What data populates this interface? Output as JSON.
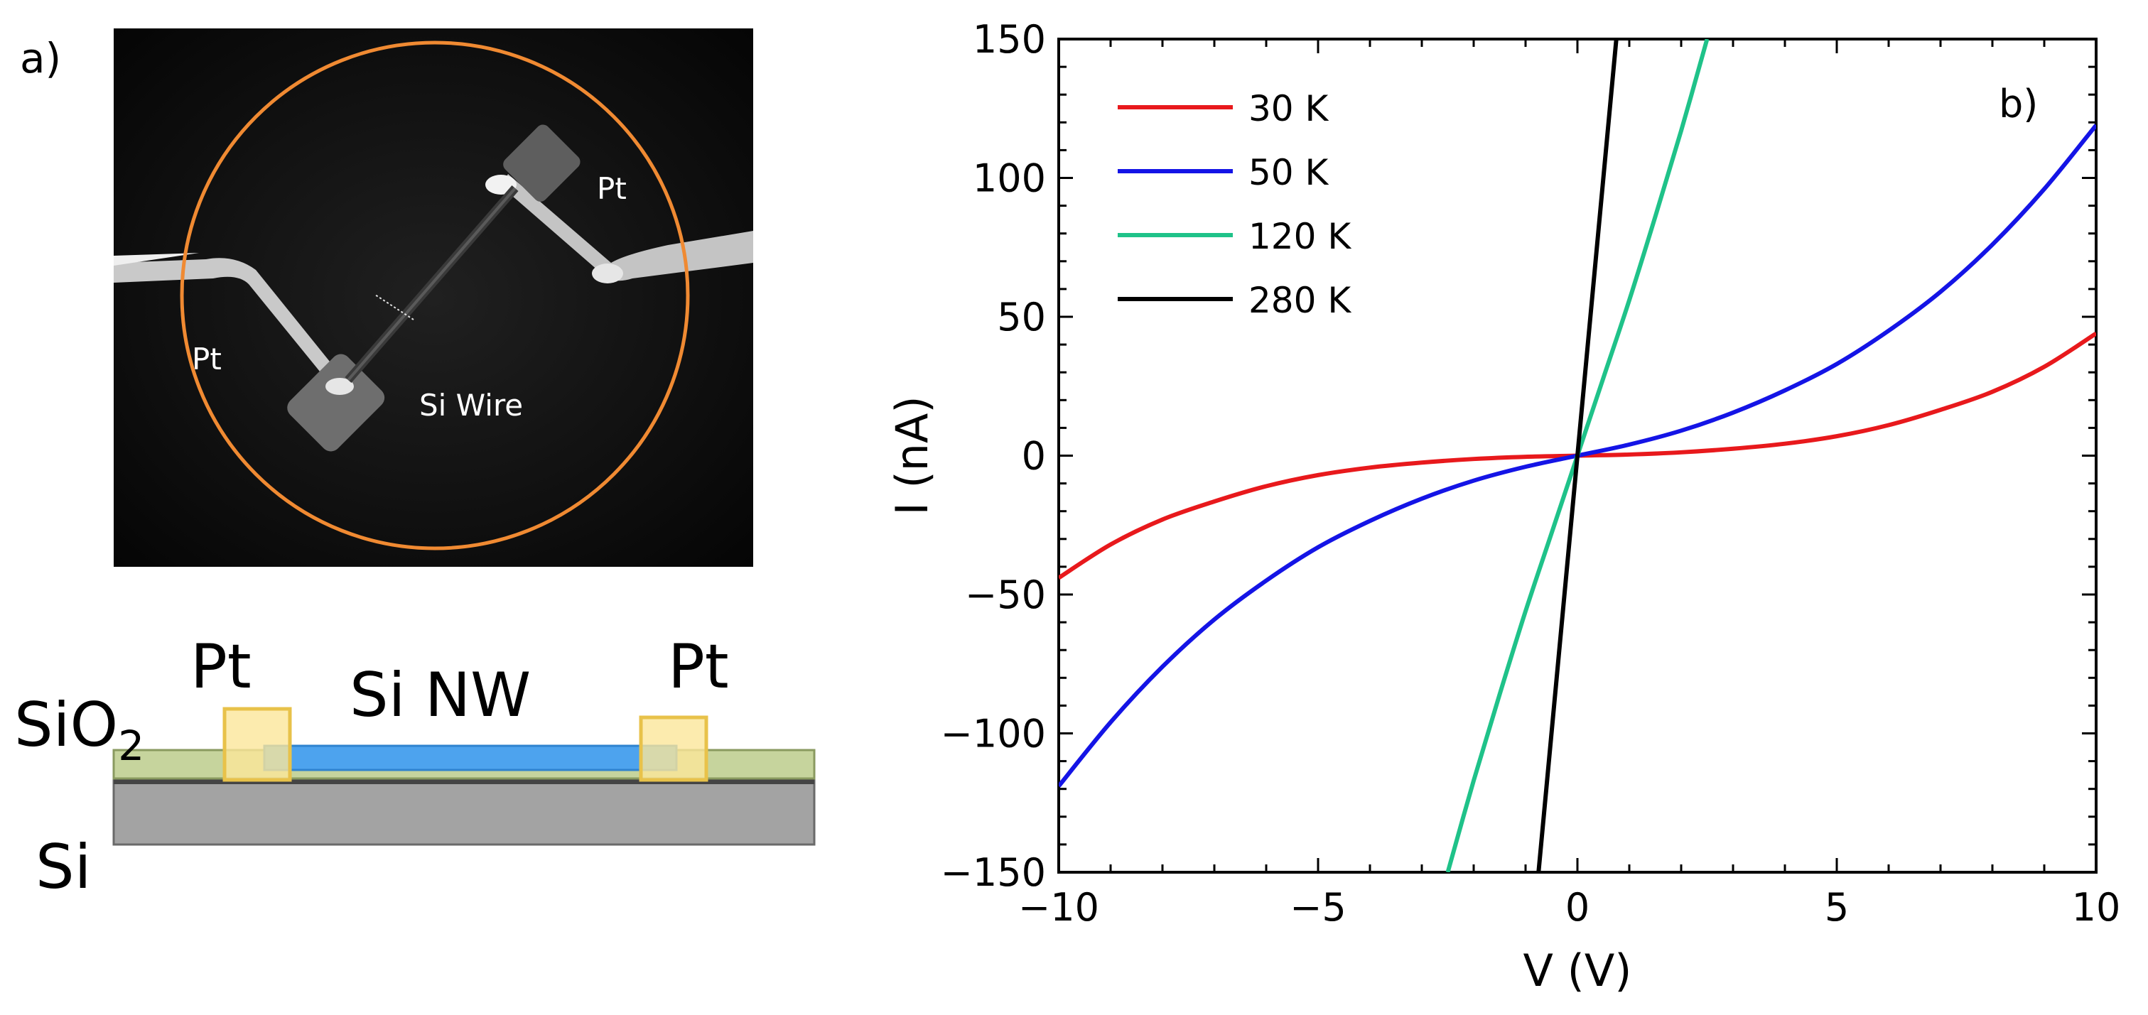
{
  "panel_a": {
    "label": "a)",
    "micrograph": {
      "pt_left": "Pt",
      "pt_right": "Pt",
      "wire_label": "Si Wire",
      "circle_color": "#f08a32"
    },
    "schematic": {
      "pt_left": "Pt",
      "pt_right": "Pt",
      "nanowire_label": "Si NW",
      "oxide_label_base": "SiO",
      "oxide_label_sub": "2",
      "substrate_label": "Si",
      "colors": {
        "pt": "#fbe69a",
        "pt_border": "#e8c24a",
        "nanowire": "#4da3ee",
        "oxide": "#c6d49d",
        "substrate": "#a3a3a3"
      }
    }
  },
  "panel_b": {
    "label": "b)"
  },
  "chart_data": {
    "type": "line",
    "title": "",
    "xlabel": "V (V)",
    "ylabel": "I (nA)",
    "xlim": [
      -10,
      10
    ],
    "ylim": [
      -150,
      150
    ],
    "xticks": [
      -10,
      -5,
      0,
      5,
      10
    ],
    "yticks": [
      -150,
      -100,
      -50,
      0,
      50,
      100,
      150
    ],
    "grid": false,
    "legend_position": "top-left",
    "series": [
      {
        "name": "30 K",
        "color": "#e8191c",
        "x": [
          -10,
          -9,
          -8,
          -7,
          -6,
          -5,
          -4,
          -3,
          -2,
          -1,
          0,
          1,
          2,
          3,
          4,
          5,
          6,
          7,
          8,
          9,
          10
        ],
        "y": [
          -44,
          -32,
          -23,
          -16.5,
          -11,
          -7,
          -4.3,
          -2.5,
          -1.2,
          -0.4,
          0,
          0.4,
          1.2,
          2.5,
          4.3,
          7,
          11,
          16.5,
          23,
          32,
          44
        ]
      },
      {
        "name": "50 K",
        "color": "#1414e6",
        "x": [
          -10,
          -9,
          -8,
          -7,
          -6,
          -5,
          -4,
          -3,
          -2,
          -1,
          0,
          1,
          2,
          3,
          4,
          5,
          6,
          7,
          8,
          9,
          10
        ],
        "y": [
          -119,
          -96,
          -76,
          -59,
          -45,
          -33,
          -23.5,
          -15.5,
          -9,
          -4,
          0,
          4,
          9,
          15.5,
          23.5,
          33,
          45,
          59,
          76,
          96,
          119
        ]
      },
      {
        "name": "120 K",
        "color": "#1fc289",
        "x": [
          -2.5,
          -2,
          -1.5,
          -1,
          -0.5,
          0,
          0.5,
          1,
          1.5,
          2,
          2.5
        ],
        "y": [
          -150,
          -117,
          -86,
          -56,
          -28,
          0,
          28,
          56,
          86,
          117,
          150
        ]
      },
      {
        "name": "280 K",
        "color": "#000000",
        "x": [
          -0.75,
          -0.4,
          0,
          0.4,
          0.75
        ],
        "y": [
          -150,
          -80,
          0,
          80,
          150
        ]
      }
    ]
  }
}
